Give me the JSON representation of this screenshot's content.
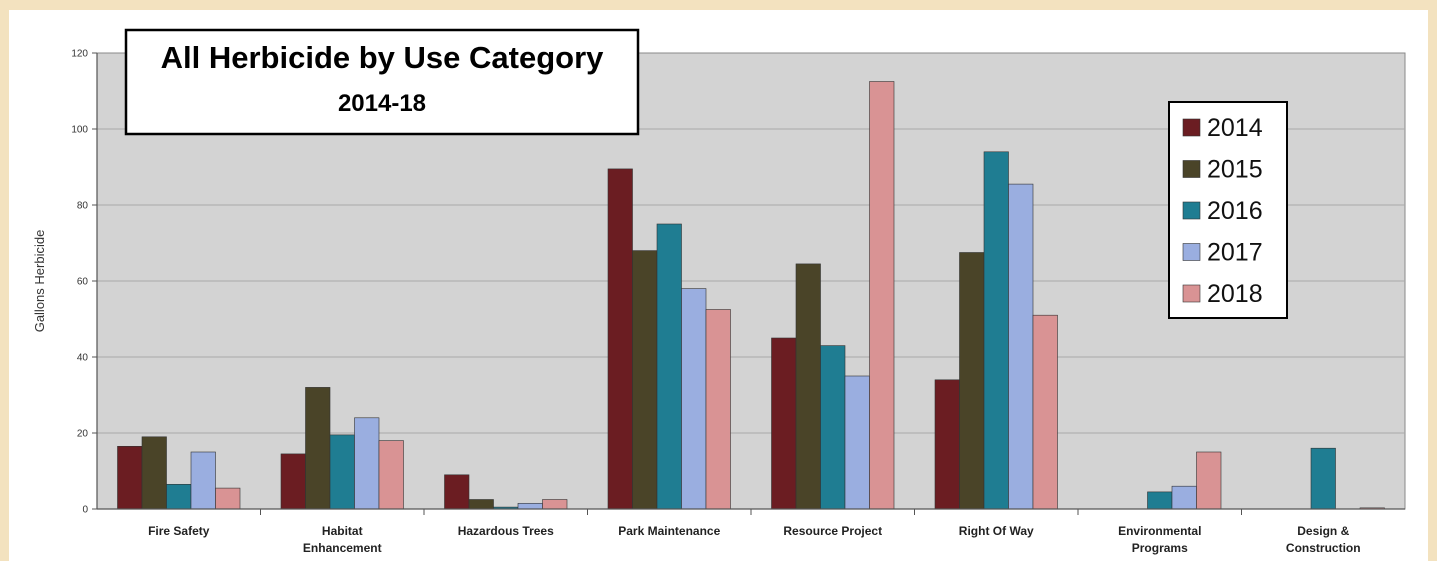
{
  "chart_data": {
    "type": "bar",
    "title": "All Herbicide by Use Category",
    "subtitle": "2014-18",
    "xlabel": "",
    "ylabel": "Gallons Herbicide",
    "ylim": [
      0,
      120
    ],
    "yticks": [
      0,
      20,
      40,
      60,
      80,
      100,
      120
    ],
    "grid": true,
    "legend_position": "top-right",
    "categories": [
      [
        "Fire Safety"
      ],
      [
        "Habitat",
        "Enhancement"
      ],
      [
        "Hazardous Trees"
      ],
      [
        "Park Maintenance"
      ],
      [
        "Resource Project"
      ],
      [
        "Right Of Way"
      ],
      [
        "Environmental",
        "Programs"
      ],
      [
        "Design &",
        "Construction"
      ]
    ],
    "series": [
      {
        "name": "2014",
        "color": "#6b1d22",
        "values": [
          16.5,
          14.5,
          9,
          89.5,
          45,
          34,
          0,
          0
        ]
      },
      {
        "name": "2015",
        "color": "#4a4428",
        "values": [
          19,
          32,
          2.5,
          68,
          64.5,
          67.5,
          0,
          0
        ]
      },
      {
        "name": "2016",
        "color": "#1f7d92",
        "values": [
          6.5,
          19.5,
          0.5,
          75,
          43,
          94,
          4.5,
          16
        ]
      },
      {
        "name": "2017",
        "color": "#9aaee0",
        "values": [
          15,
          24,
          1.5,
          58,
          35,
          85.5,
          6,
          0
        ]
      },
      {
        "name": "2018",
        "color": "#d99394",
        "values": [
          5.5,
          18,
          2.5,
          52.5,
          112.5,
          51,
          15,
          0.3
        ]
      }
    ]
  }
}
